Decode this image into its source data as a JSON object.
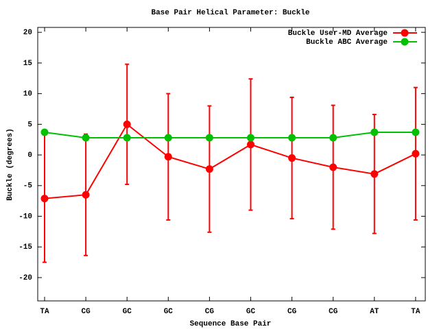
{
  "chart_data": {
    "type": "line",
    "title": "Base Pair Helical Parameter: Buckle",
    "x_label": "Sequence Base Pair",
    "y_label": "Buckle (degrees)",
    "categories": [
      "TA",
      "CG",
      "GC",
      "GC",
      "CG",
      "GC",
      "CG",
      "CG",
      "AT",
      "TA"
    ],
    "series": [
      {
        "name": "Buckle User-MD Average",
        "color": "#ff0000",
        "values": [
          -7.1,
          -6.5,
          5.0,
          -0.3,
          -2.3,
          1.7,
          -0.5,
          -2.0,
          -3.1,
          0.2
        ],
        "errors": [
          10.4,
          9.9,
          9.8,
          10.3,
          10.3,
          10.7,
          9.9,
          10.1,
          9.7,
          10.8
        ]
      },
      {
        "name": "Buckle ABC Average",
        "color": "#00c000",
        "values": [
          3.7,
          2.8,
          2.8,
          2.8,
          2.8,
          2.8,
          2.8,
          2.8,
          3.7,
          3.7
        ]
      }
    ],
    "ylim": [
      -23.8,
      20.8
    ],
    "yticks": [
      -20,
      -15,
      -10,
      -5,
      0,
      5,
      10,
      15,
      20
    ],
    "legend": "top-right"
  }
}
